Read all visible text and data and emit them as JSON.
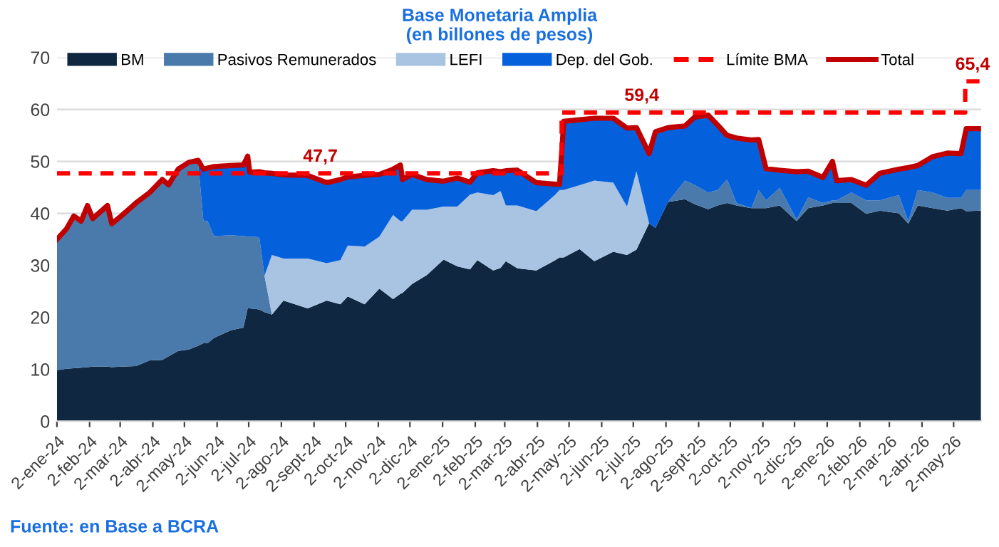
{
  "chart_data": {
    "type": "area",
    "stacked": true,
    "title": "Base Monetaria Amplia\n(en billones de pesos)",
    "x": [
      "2024-01-02",
      "2024-01-11",
      "2024-01-18",
      "2024-01-25",
      "2024-01-31",
      "2024-02-05",
      "2024-02-19",
      "2024-02-23",
      "2024-03-03",
      "2024-03-17",
      "2024-03-30",
      "2024-04-11",
      "2024-04-17",
      "2024-04-26",
      "2024-05-06",
      "2024-05-15",
      "2024-05-20",
      "2024-05-24",
      "2024-05-30",
      "2024-06-15",
      "2024-06-27",
      "2024-07-01",
      "2024-07-03",
      "2024-07-12",
      "2024-07-17",
      "2024-07-24",
      "2024-08-04",
      "2024-08-27",
      "2024-09-14",
      "2024-09-27",
      "2024-10-04",
      "2024-10-20",
      "2024-11-03",
      "2024-11-16",
      "2024-11-23",
      "2024-11-25",
      "2024-12-04",
      "2024-12-18",
      "2025-01-03",
      "2025-01-16",
      "2025-01-28",
      "2025-02-04",
      "2025-02-19",
      "2025-02-26",
      "2025-03-03",
      "2025-03-14",
      "2025-04-01",
      "2025-04-19",
      "2025-04-23",
      "2025-04-27",
      "2025-05-12",
      "2025-05-26",
      "2025-06-13",
      "2025-06-26",
      "2025-07-05",
      "2025-07-17",
      "2025-07-23",
      "2025-08-04",
      "2025-08-20",
      "2025-08-29",
      "2025-09-11",
      "2025-09-20",
      "2025-09-29",
      "2025-10-08",
      "2025-10-22",
      "2025-10-29",
      "2025-11-05",
      "2025-11-18",
      "2025-12-04",
      "2025-12-15",
      "2025-12-29",
      "2026-01-07",
      "2026-01-11",
      "2026-01-25",
      "2026-02-08",
      "2026-02-21",
      "2026-03-11",
      "2026-03-20",
      "2026-03-29",
      "2026-04-12",
      "2026-04-26",
      "2026-05-09",
      "2026-05-14",
      "2026-05-28"
    ],
    "series": [
      {
        "name": "BM",
        "color": "#0f2741",
        "values": [
          9.8,
          10.1,
          10.2,
          10.3,
          10.4,
          10.5,
          10.5,
          10.4,
          10.5,
          10.6,
          11.7,
          11.8,
          12.5,
          13.5,
          13.8,
          14.5,
          15,
          15,
          16,
          17.5,
          18,
          21.7,
          21.7,
          21.5,
          21,
          20.5,
          23.2,
          21.7,
          23.2,
          22.5,
          24,
          22.5,
          25.5,
          23.5,
          24.5,
          24.7,
          26.4,
          28.1,
          31.1,
          29.8,
          29.2,
          31,
          29,
          29.5,
          30.8,
          29.4,
          29,
          31,
          31.5,
          31.5,
          33.1,
          30.8,
          32.6,
          32,
          33,
          38.1,
          37.2,
          42.2,
          42.7,
          41.8,
          40.8,
          41.5,
          42,
          41.5,
          41,
          41,
          41,
          41.5,
          38.5,
          41,
          41.5,
          42,
          42,
          42,
          39.9,
          40.5,
          40,
          38,
          41.5,
          41,
          40.5,
          41,
          40.4,
          40.5
        ]
      },
      {
        "name": "Pasivos Remunerados",
        "color": "#4a7aab",
        "values": [
          24.7,
          26.4,
          28.8,
          27.7,
          30.6,
          28,
          30.5,
          27.1,
          28.5,
          30.9,
          31.8,
          34.2,
          32.5,
          34.5,
          35.5,
          35.2,
          23.6,
          23.5,
          19.6,
          18.3,
          17.6,
          13.8,
          13.8,
          13.9,
          7,
          0,
          0,
          0,
          0,
          0,
          0,
          0,
          0,
          0,
          0,
          0,
          0,
          0,
          0,
          0,
          0,
          0,
          0,
          0,
          0,
          0,
          0,
          0,
          0,
          0,
          0,
          0,
          0,
          0,
          0,
          0,
          0,
          0,
          3.6,
          3.7,
          3.2,
          3,
          4.5,
          0.5,
          0,
          3.5,
          1.5,
          3.4,
          0.3,
          2.1,
          0.5,
          0.5,
          0.5,
          2,
          2.6,
          2,
          3.5,
          0.5,
          3,
          3,
          2.5,
          2,
          4.1,
          4
        ]
      },
      {
        "name": "LEFI",
        "color": "#a8c4e2",
        "values": [
          0,
          0,
          0,
          0,
          0,
          0,
          0,
          0,
          0,
          0,
          0,
          0,
          0,
          0,
          0,
          0,
          0,
          0,
          0,
          0,
          0,
          0,
          0,
          0,
          0,
          11.5,
          8.1,
          9.6,
          7.2,
          8.5,
          9.8,
          11.1,
          10,
          16.2,
          14,
          13.8,
          14.3,
          12.6,
          10.2,
          11.5,
          14.4,
          13,
          14.5,
          14.8,
          10.7,
          12.1,
          11.4,
          12.6,
          13,
          13,
          12.3,
          15.5,
          13.3,
          9.3,
          15.1,
          0,
          0,
          0,
          0,
          0,
          0,
          0,
          0,
          0,
          0,
          0,
          0,
          0,
          0,
          0,
          0,
          0,
          0,
          0,
          0,
          0,
          0,
          0,
          0,
          0,
          0,
          0,
          0,
          0
        ]
      },
      {
        "name": "Dep. del Gob.",
        "color": "#0560dc",
        "values": [
          0.5,
          0.5,
          0.5,
          0.5,
          0.5,
          0.5,
          0.5,
          0.5,
          0.5,
          0.5,
          0.5,
          0.5,
          0.5,
          0.5,
          0.5,
          0.5,
          9.9,
          10.2,
          13.4,
          13.4,
          13.7,
          15.5,
          12.4,
          12.6,
          19.8,
          15.7,
          16.1,
          16,
          15.5,
          15.5,
          13.2,
          13.7,
          12,
          8.8,
          10.8,
          8,
          6.8,
          5.8,
          4.9,
          5.5,
          2.4,
          3.8,
          4.7,
          3.7,
          6.7,
          6.8,
          5.5,
          2,
          1.1,
          13.2,
          12.6,
          12,
          12.4,
          15.1,
          8.4,
          13.4,
          18.5,
          14.3,
          10.5,
          13,
          14.9,
          12.5,
          8.5,
          12.5,
          13.1,
          9.7,
          6.1,
          3.4,
          9.2,
          5,
          4.9,
          7.5,
          3.8,
          2.5,
          2.9,
          5.2,
          5,
          10.3,
          4.7,
          6.9,
          8.6,
          8.5,
          11.8,
          11.8
        ]
      },
      {
        "name": "Límite BMA",
        "type": "step",
        "color": "#ff0000",
        "line_style": "dashed",
        "x": [
          "2024-01-02",
          "2025-04-25",
          "2026-05-13",
          "2026-05-28"
        ],
        "values": [
          47.7,
          59.4,
          65.4,
          65.4
        ]
      },
      {
        "name": "Total",
        "type": "line",
        "color": "#c00000",
        "line_style": "solid",
        "values": [
          35,
          37,
          39.5,
          38.5,
          41.5,
          39,
          41.5,
          38,
          39.5,
          42,
          44,
          46.5,
          45.5,
          48.5,
          49.8,
          50.2,
          48.5,
          48.7,
          49,
          49.2,
          49.3,
          51,
          47.9,
          48,
          47.8,
          47.7,
          47.4,
          47.3,
          45.9,
          46.5,
          47,
          47.3,
          47.5,
          48.5,
          49.3,
          46.5,
          47.5,
          46.5,
          46.2,
          46.8,
          46,
          47.8,
          48.2,
          48,
          48.2,
          48.3,
          45.9,
          45.6,
          45.6,
          57.7,
          58,
          58.3,
          58.3,
          56.4,
          56.5,
          51.5,
          55.7,
          56.5,
          56.8,
          58.5,
          58.9,
          57,
          55,
          54.5,
          54.1,
          54.2,
          48.6,
          48.3,
          48,
          48.1,
          46.9,
          50,
          46.3,
          46.5,
          45.4,
          47.7,
          48.5,
          48.8,
          49.2,
          50.9,
          51.6,
          51.5,
          56.3,
          56.3
        ]
      }
    ],
    "xlim": [
      "2024-01-02",
      "2026-05-28"
    ],
    "xticks": [
      {
        "value": "2024-01-02",
        "label": "2-ene-24"
      },
      {
        "value": "2024-02-02",
        "label": "2-feb-24"
      },
      {
        "value": "2024-03-02",
        "label": "2-mar-24"
      },
      {
        "value": "2024-04-02",
        "label": "2-abr-24"
      },
      {
        "value": "2024-05-02",
        "label": "2-may-24"
      },
      {
        "value": "2024-06-02",
        "label": "2-jun-24"
      },
      {
        "value": "2024-07-02",
        "label": "2-jul-24"
      },
      {
        "value": "2024-08-02",
        "label": "2-ago-24"
      },
      {
        "value": "2024-09-02",
        "label": "2-sept-24"
      },
      {
        "value": "2024-10-02",
        "label": "2-oct-24"
      },
      {
        "value": "2024-11-02",
        "label": "2-nov-24"
      },
      {
        "value": "2024-12-02",
        "label": "2-dic-24"
      },
      {
        "value": "2025-01-02",
        "label": "2-ene-25"
      },
      {
        "value": "2025-02-02",
        "label": "2-feb-25"
      },
      {
        "value": "2025-03-02",
        "label": "2-mar-25"
      },
      {
        "value": "2025-04-02",
        "label": "2-abr-25"
      },
      {
        "value": "2025-05-02",
        "label": "2-may-25"
      },
      {
        "value": "2025-06-02",
        "label": "2-jun-25"
      },
      {
        "value": "2025-07-02",
        "label": "2-jul-25"
      },
      {
        "value": "2025-08-02",
        "label": "2-ago-25"
      },
      {
        "value": "2025-09-02",
        "label": "2-sept-25"
      },
      {
        "value": "2025-10-02",
        "label": "2-oct-25"
      },
      {
        "value": "2025-11-02",
        "label": "2-nov-25"
      },
      {
        "value": "2025-12-02",
        "label": "2-dic-25"
      },
      {
        "value": "2026-01-02",
        "label": "2-ene-26"
      },
      {
        "value": "2026-02-02",
        "label": "2-feb-26"
      },
      {
        "value": "2026-03-02",
        "label": "2-mar-26"
      },
      {
        "value": "2026-04-02",
        "label": "2-abr-26"
      },
      {
        "value": "2026-05-02",
        "label": "2-may-26"
      }
    ],
    "ylim": [
      0,
      70
    ],
    "yticks": [
      0,
      10,
      20,
      30,
      40,
      50,
      60,
      70
    ],
    "grid": "y",
    "legend": "top",
    "annotations": [
      {
        "text": "47,7",
        "x": "2024-09-08",
        "y": 47.7
      },
      {
        "text": "59,4",
        "x": "2025-07-10",
        "y": 59.4
      },
      {
        "text": "65,4",
        "x": "2026-05-20",
        "y": 65.4
      },
      "Fuente: en Base a BCRA"
    ]
  }
}
